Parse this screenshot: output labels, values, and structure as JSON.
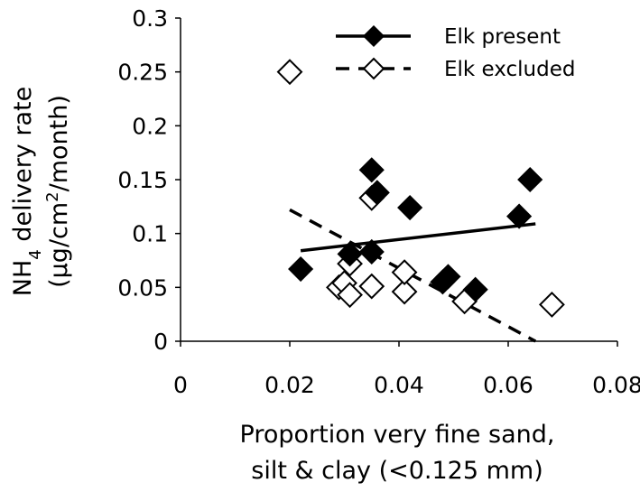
{
  "chart_data": {
    "type": "scatter",
    "xlabel_lines": [
      "Proportion very fine sand,",
      "silt & clay (<0.125 mm)"
    ],
    "ylabel_lines": [
      "NH4 delivery rate",
      "(µg/cm2/month)"
    ],
    "ylabel_rich": {
      "line1": [
        {
          "t": "NH"
        },
        {
          "t": "4",
          "sub": true
        },
        {
          "t": " delivery rate"
        }
      ],
      "line2": [
        {
          "t": "(µg/cm"
        },
        {
          "t": "2",
          "sup": true
        },
        {
          "t": "/month)"
        }
      ]
    },
    "xlim": [
      0,
      0.08
    ],
    "ylim": [
      0,
      0.3
    ],
    "x_ticks": [
      0,
      0.02,
      0.04,
      0.06,
      0.08
    ],
    "x_tick_labels": [
      "0",
      "0.02",
      "0.04",
      "0.06",
      "0.08"
    ],
    "y_ticks": [
      0,
      0.05,
      0.1,
      0.15,
      0.2,
      0.25,
      0.3
    ],
    "y_tick_labels": [
      "0",
      "0.05",
      "0.1",
      "0.15",
      "0.2",
      "0.25",
      "0.3"
    ],
    "grid": false,
    "legend_position": "top-right",
    "series": [
      {
        "name": "Elk present",
        "marker": "filled-diamond",
        "line_style": "solid",
        "color": "#000000",
        "points": [
          {
            "x": 0.022,
            "y": 0.067
          },
          {
            "x": 0.031,
            "y": 0.081
          },
          {
            "x": 0.035,
            "y": 0.083
          },
          {
            "x": 0.035,
            "y": 0.159
          },
          {
            "x": 0.036,
            "y": 0.138
          },
          {
            "x": 0.042,
            "y": 0.124
          },
          {
            "x": 0.048,
            "y": 0.055
          },
          {
            "x": 0.049,
            "y": 0.06
          },
          {
            "x": 0.054,
            "y": 0.048
          },
          {
            "x": 0.062,
            "y": 0.116
          },
          {
            "x": 0.064,
            "y": 0.15
          }
        ],
        "trendline": {
          "x": [
            0.022,
            0.065
          ],
          "y": [
            0.084,
            0.109
          ]
        }
      },
      {
        "name": "Elk excluded",
        "marker": "open-diamond",
        "line_style": "dashed",
        "color": "#000000",
        "points": [
          {
            "x": 0.02,
            "y": 0.25
          },
          {
            "x": 0.029,
            "y": 0.05
          },
          {
            "x": 0.03,
            "y": 0.054
          },
          {
            "x": 0.031,
            "y": 0.043
          },
          {
            "x": 0.031,
            "y": 0.072
          },
          {
            "x": 0.035,
            "y": 0.051
          },
          {
            "x": 0.035,
            "y": 0.133
          },
          {
            "x": 0.041,
            "y": 0.046
          },
          {
            "x": 0.041,
            "y": 0.064
          },
          {
            "x": 0.052,
            "y": 0.037
          },
          {
            "x": 0.068,
            "y": 0.034
          }
        ],
        "trendline": {
          "x": [
            0.02,
            0.065
          ],
          "y": [
            0.122,
            0.0
          ]
        }
      }
    ]
  }
}
